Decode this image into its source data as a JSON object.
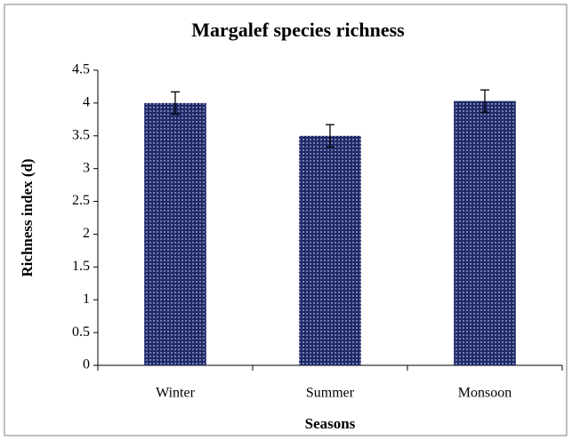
{
  "chart_data": {
    "type": "bar",
    "title": "Margalef species richness",
    "xlabel": "Seasons",
    "ylabel": "Richness index (d)",
    "categories": [
      "Winter",
      "Summer",
      "Monsoon"
    ],
    "values": [
      4.0,
      3.5,
      4.03
    ],
    "errors": [
      0.17,
      0.17,
      0.17
    ],
    "color": "#1f2a6b",
    "ylim": [
      0,
      4.5
    ],
    "yticks": [
      0,
      0.5,
      1,
      1.5,
      2,
      2.5,
      3,
      3.5,
      4,
      4.5
    ],
    "grid": false
  }
}
